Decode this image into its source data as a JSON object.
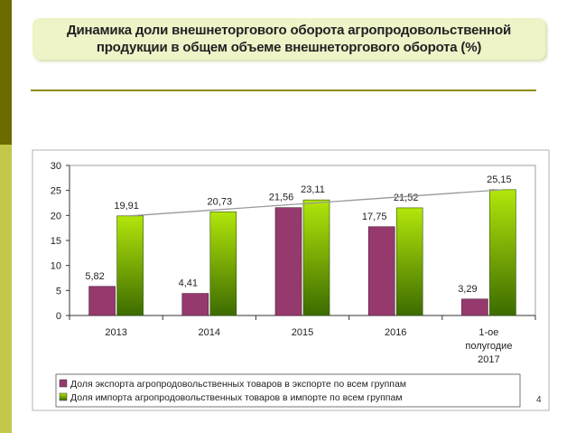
{
  "slide": {
    "title": "Динамика доли внешнеторгового оборота агропродовольственной продукции в общем объеме внешнеторгового оборота (%)",
    "page_number": "4"
  },
  "colors": {
    "export": "#963a6e",
    "import_light": "#b2e60a",
    "import_dark": "#3d6b00",
    "trend": "#999999",
    "accent": "#6b6b00"
  },
  "chart_data": {
    "type": "bar",
    "title": "",
    "categories": [
      [
        "2013"
      ],
      [
        "2014"
      ],
      [
        "2015"
      ],
      [
        "2016"
      ],
      [
        "1-ое",
        "полугодие",
        "2017"
      ]
    ],
    "series": [
      {
        "name": "Доля экспорта агропродовольственных товаров в экспорте по всем группам",
        "values": [
          5.82,
          4.41,
          21.56,
          17.75,
          3.29
        ],
        "labels": [
          "5,82",
          "4,41",
          "21,56",
          "17,75",
          "3,29"
        ]
      },
      {
        "name": "Доля импорта агропродовольственных товаров в импорте по всем группам",
        "values": [
          19.91,
          20.73,
          23.11,
          21.52,
          25.15
        ],
        "labels": [
          "19,91",
          "20,73",
          "23,11",
          "21,52",
          "25,15"
        ]
      }
    ],
    "yticks": [
      "0",
      "5",
      "10",
      "15",
      "20",
      "25",
      "30"
    ],
    "ylim": [
      0,
      30
    ],
    "trendline": {
      "series": 1,
      "from": 19.91,
      "to": 25.15
    },
    "legend_position": "bottom",
    "xlabel": "",
    "ylabel": ""
  }
}
